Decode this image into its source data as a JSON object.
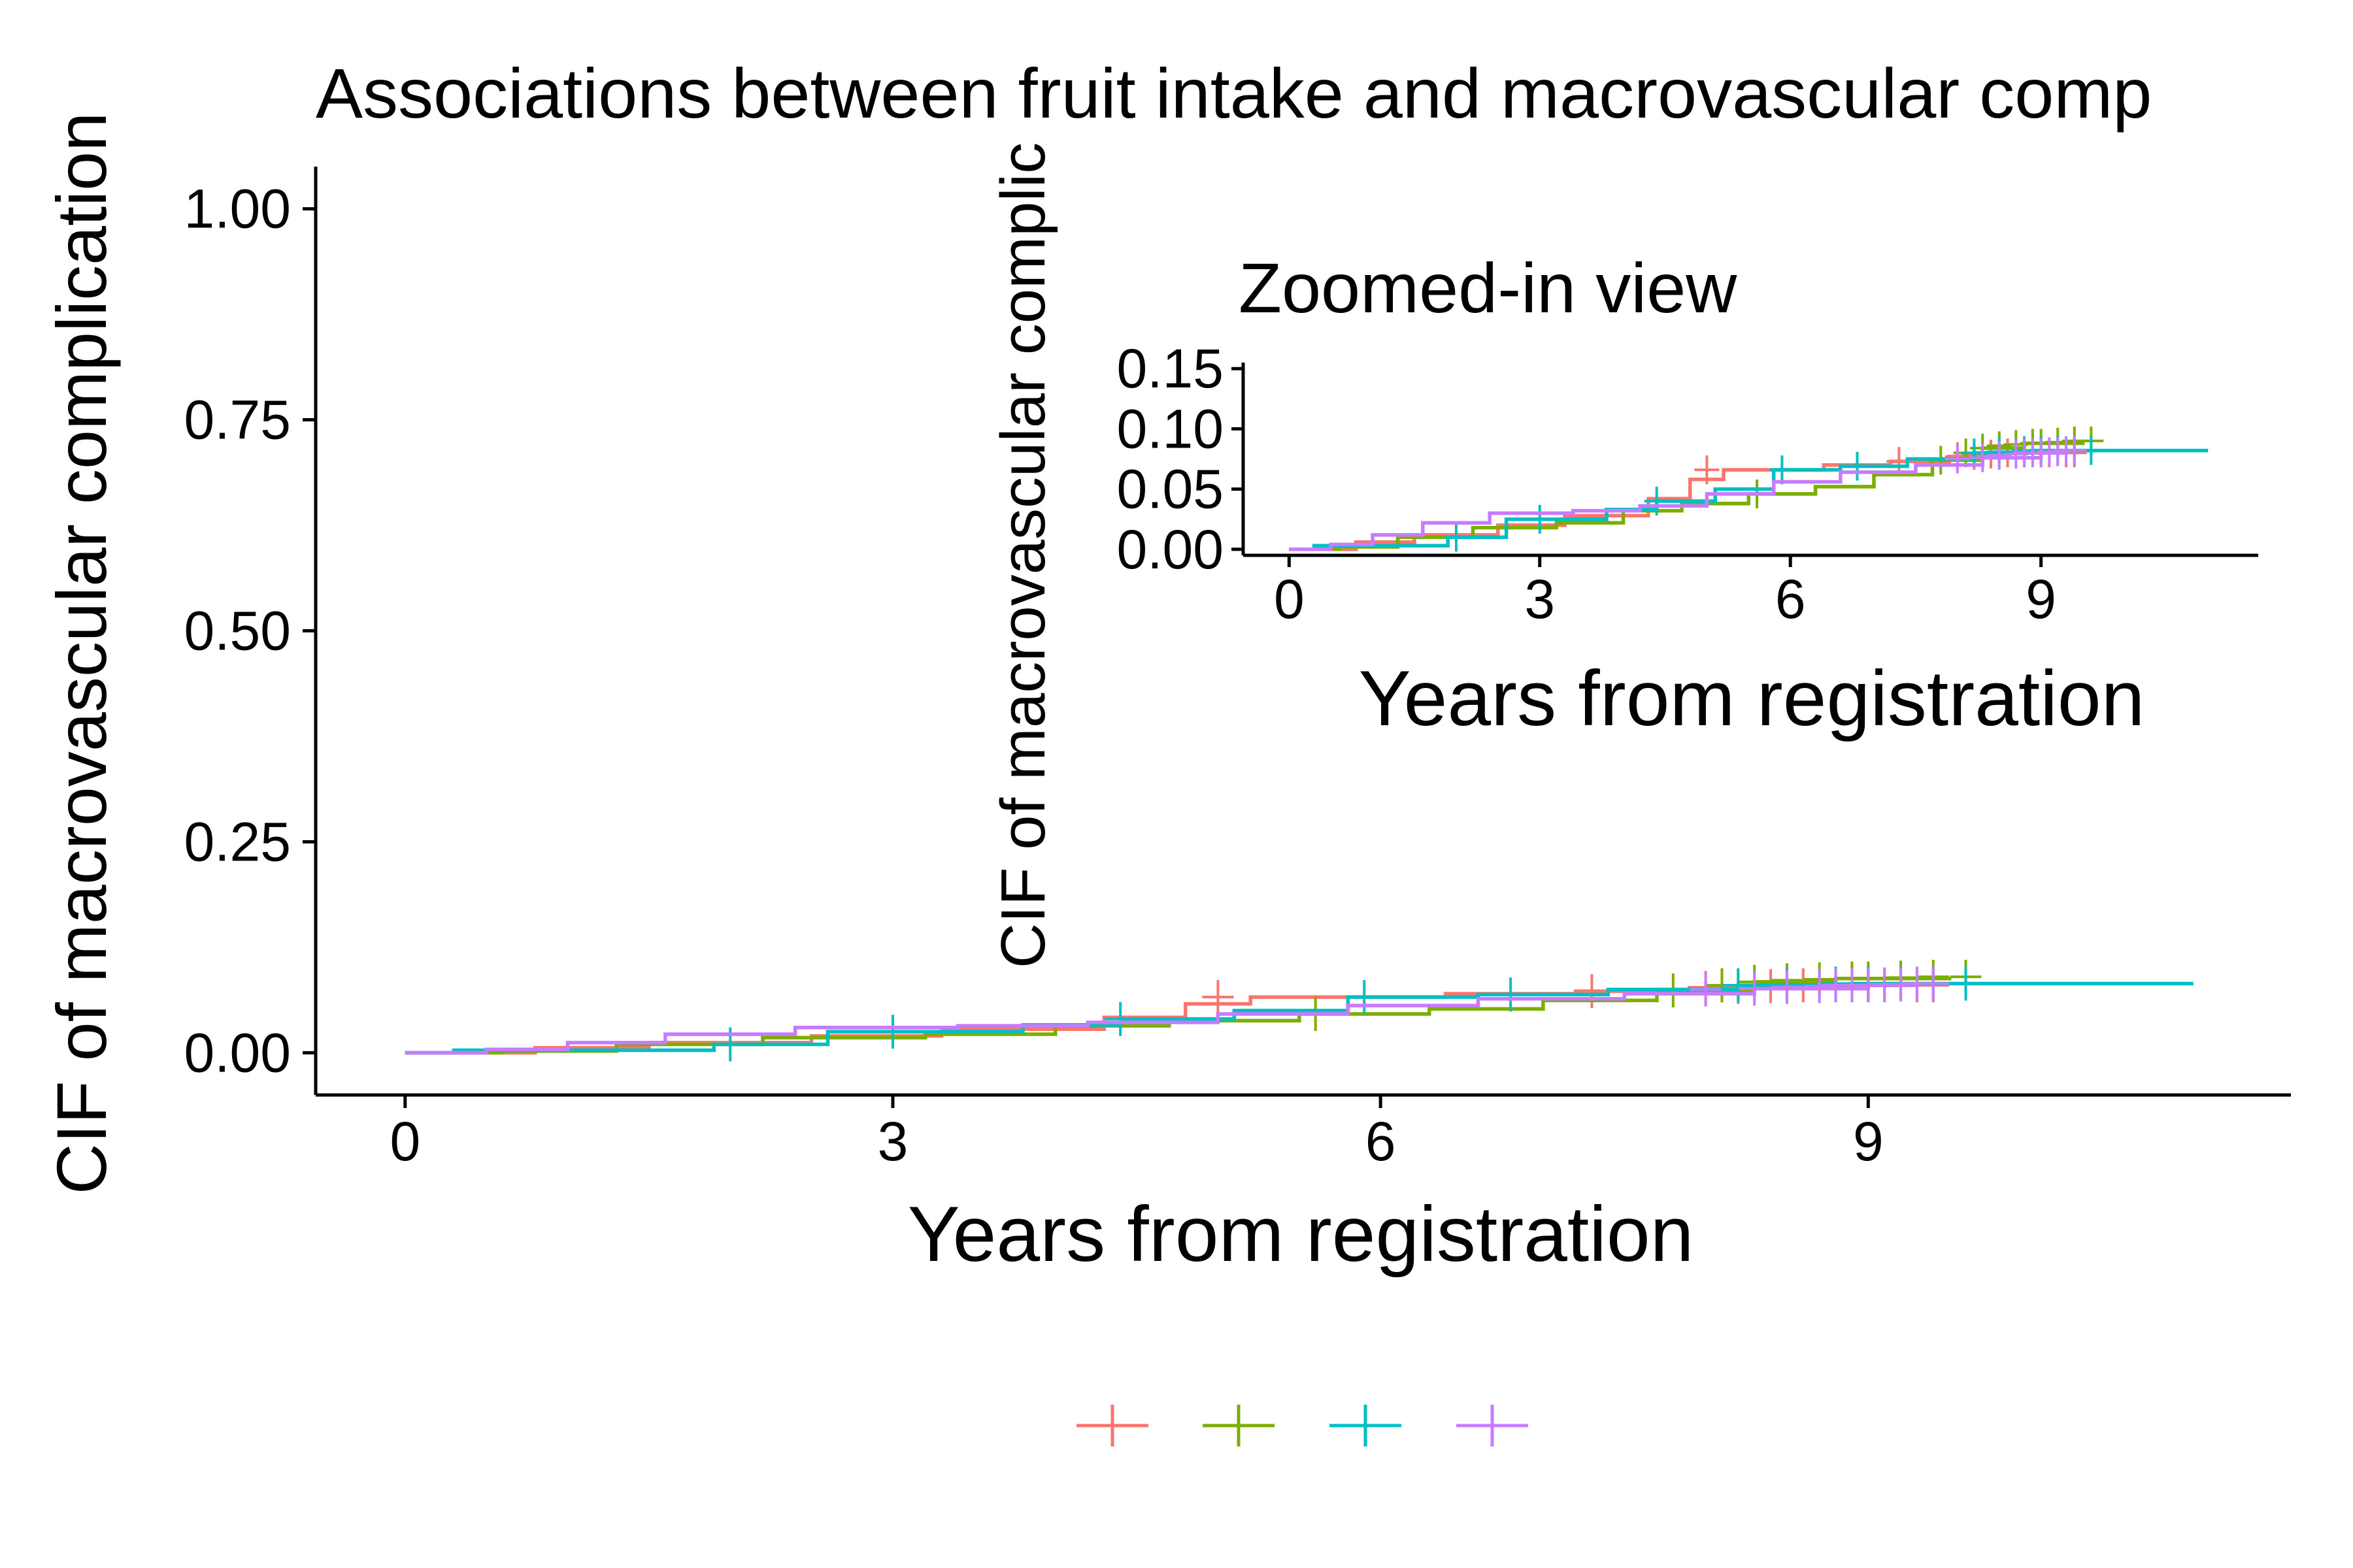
{
  "chart_data": [
    {
      "type": "line",
      "subtype": "step cumulative incidence",
      "title": "Associations between fruit intake and macrovascular comp",
      "xlabel": "Years from registration",
      "ylabel": "CIF of macrovascular complication",
      "xlim": [
        -0.55,
        11.6
      ],
      "ylim": [
        -0.05,
        1.05
      ],
      "xticks": [
        0,
        3,
        6,
        9
      ],
      "xtick_labels": [
        "0",
        "3",
        "6",
        "9"
      ],
      "yticks": [
        0,
        0.25,
        0.5,
        0.75,
        1
      ],
      "ytick_labels": [
        "0.00",
        "0.25",
        "0.50",
        "0.75",
        "1.00"
      ],
      "grid": false,
      "legend_position": "bottom",
      "series": [
        {
          "color": "#F8766D",
          "x": [
            0,
            0.8,
            1.5,
            2.5,
            3.3,
            4.3,
            4.8,
            5.2,
            5.8,
            6.4,
            7.2,
            7.9,
            8.6,
            9.2
          ],
          "y": [
            0,
            0.006,
            0.012,
            0.02,
            0.028,
            0.042,
            0.058,
            0.066,
            0.066,
            0.07,
            0.073,
            0.077,
            0.08,
            0.08
          ],
          "censor_x": [
            5.0,
            7.3,
            8.0,
            8.2,
            8.4,
            8.6,
            8.8,
            9.0,
            9.1,
            9.3,
            9.4
          ],
          "censor_y": [
            0.066,
            0.073,
            0.077,
            0.078,
            0.079,
            0.08,
            0.08,
            0.08,
            0.08,
            0.08,
            0.08
          ]
        },
        {
          "color": "#7CAE00",
          "x": [
            0,
            0.6,
            1.3,
            2.2,
            3.2,
            4.0,
            4.7,
            5.5,
            6.3,
            7.0,
            7.7,
            8.3,
            8.8,
            9.5
          ],
          "y": [
            0,
            0.002,
            0.01,
            0.018,
            0.022,
            0.032,
            0.038,
            0.046,
            0.052,
            0.062,
            0.074,
            0.084,
            0.088,
            0.09
          ],
          "censor_x": [
            5.6,
            7.8,
            8.1,
            8.3,
            8.5,
            8.7,
            8.9,
            9.0,
            9.2,
            9.4,
            9.6
          ],
          "censor_y": [
            0.046,
            0.074,
            0.08,
            0.084,
            0.086,
            0.087,
            0.088,
            0.088,
            0.089,
            0.09,
            0.09
          ]
        },
        {
          "color": "#00BFC4",
          "x": [
            0,
            0.3,
            1.9,
            2.6,
            3.8,
            4.4,
            5.1,
            5.8,
            6.6,
            7.4,
            8.2,
            8.9,
            11.0
          ],
          "y": [
            0,
            0.003,
            0.01,
            0.025,
            0.033,
            0.04,
            0.05,
            0.066,
            0.069,
            0.075,
            0.08,
            0.082,
            0.082
          ],
          "censor_x": [
            2.0,
            3.0,
            4.4,
            5.9,
            6.8,
            8.2,
            8.5,
            8.8,
            9.0,
            9.2,
            9.4,
            9.6
          ],
          "censor_y": [
            0.01,
            0.025,
            0.04,
            0.066,
            0.069,
            0.08,
            0.081,
            0.082,
            0.082,
            0.082,
            0.082,
            0.082
          ]
        },
        {
          "color": "#C77CFF",
          "x": [
            0,
            0.5,
            1.0,
            1.6,
            2.4,
            3.4,
            4.2,
            5.0,
            5.8,
            6.6,
            7.5,
            8.3,
            9.0,
            9.3
          ],
          "y": [
            0,
            0.004,
            0.012,
            0.022,
            0.03,
            0.032,
            0.036,
            0.046,
            0.056,
            0.064,
            0.07,
            0.076,
            0.08,
            0.082
          ],
          "censor_x": [
            8.0,
            8.3,
            8.5,
            8.7,
            8.8,
            8.9,
            9.0,
            9.1,
            9.2,
            9.3,
            9.4
          ],
          "censor_y": [
            0.075,
            0.076,
            0.078,
            0.079,
            0.08,
            0.08,
            0.08,
            0.081,
            0.081,
            0.082,
            0.082
          ]
        }
      ]
    },
    {
      "type": "line",
      "subtype": "step cumulative incidence (inset)",
      "title": "Zoomed-in view",
      "xlabel": "Years from registration",
      "ylabel": "CIF of macrovascular complic",
      "xlim": [
        -0.55,
        11.6
      ],
      "ylim": [
        -0.005,
        0.155
      ],
      "xticks": [
        0,
        3,
        6,
        9
      ],
      "xtick_labels": [
        "0",
        "3",
        "6",
        "9"
      ],
      "yticks": [
        0,
        0.05,
        0.1,
        0.15
      ],
      "ytick_labels": [
        "0.00",
        "0.05",
        "0.10",
        "0.15"
      ],
      "grid": false,
      "series_ref": "same series as main panel"
    }
  ],
  "legend": {
    "entries": [
      {
        "label": "",
        "color": "#F8766D"
      },
      {
        "label": "",
        "color": "#7CAE00"
      },
      {
        "label": "",
        "color": "#00BFC4"
      },
      {
        "label": "",
        "color": "#C77CFF"
      }
    ]
  }
}
